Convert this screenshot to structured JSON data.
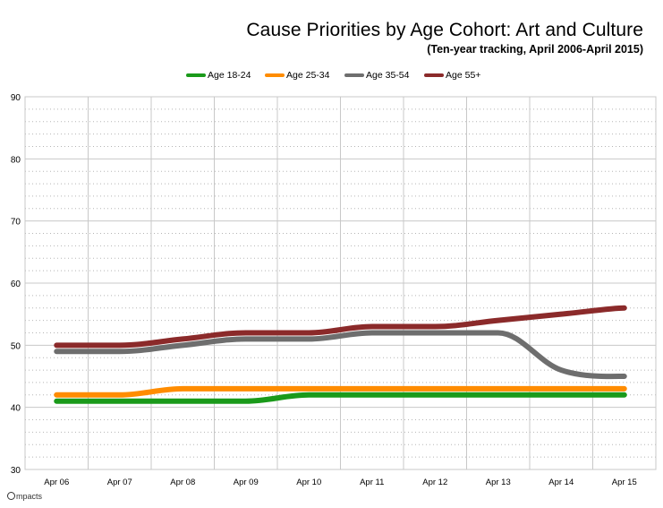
{
  "chart_data": {
    "type": "line",
    "title": "Cause Priorities by Age Cohort: Art and Culture",
    "subtitle": "(Ten-year tracking, April 2006-April 2015)",
    "xlabel": "",
    "ylabel": "",
    "categories": [
      "Apr 06",
      "Apr 07",
      "Apr 08",
      "Apr 09",
      "Apr 10",
      "Apr 11",
      "Apr 12",
      "Apr 13",
      "Apr 14",
      "Apr 15"
    ],
    "ylim": [
      30,
      90
    ],
    "yticks": [
      "30",
      "40",
      "50",
      "60",
      "70",
      "80",
      "90"
    ],
    "grid": true,
    "legend_position": "top",
    "series": [
      {
        "name": "Age 18-24",
        "color": "#1a9a1a",
        "values": [
          41,
          41,
          41,
          41,
          42,
          42,
          42,
          42,
          42,
          42
        ]
      },
      {
        "name": "Age 25-34",
        "color": "#ff8c00",
        "values": [
          42,
          42,
          43,
          43,
          43,
          43,
          43,
          43,
          43,
          43
        ]
      },
      {
        "name": "Age 35-54",
        "color": "#6e6e6e",
        "values": [
          49,
          49,
          50,
          51,
          51,
          52,
          52,
          52,
          46,
          45
        ]
      },
      {
        "name": "Age 55+",
        "color": "#8b2a2a",
        "values": [
          50,
          50,
          51,
          52,
          52,
          53,
          53,
          54,
          55,
          56
        ]
      }
    ]
  },
  "footer": {
    "brand": "mpacts"
  }
}
